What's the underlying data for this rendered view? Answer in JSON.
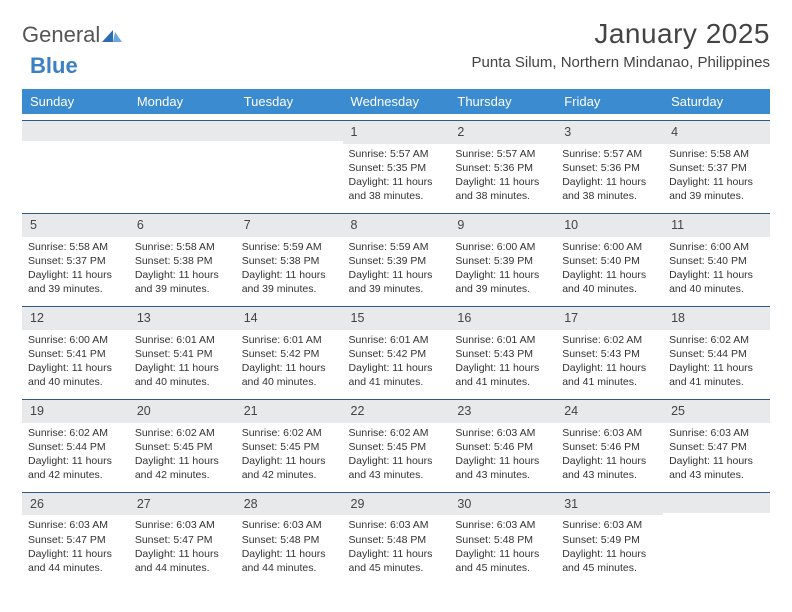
{
  "brand": {
    "general": "General",
    "blue": "Blue"
  },
  "header": {
    "title": "January 2025",
    "location": "Punta Silum, Northern Mindanao, Philippines"
  },
  "colors": {
    "header_bg": "#3b8bd1",
    "header_text": "#ffffff",
    "daynum_bg": "#e7e9eb",
    "daynum_border": "#2f5a87",
    "brand_blue": "#3b7fc4",
    "body_text": "#333333",
    "background": "#ffffff"
  },
  "calendar": {
    "day_names": [
      "Sunday",
      "Monday",
      "Tuesday",
      "Wednesday",
      "Thursday",
      "Friday",
      "Saturday"
    ],
    "weeks": [
      [
        null,
        null,
        null,
        {
          "n": "1",
          "sunrise": "Sunrise: 5:57 AM",
          "sunset": "Sunset: 5:35 PM",
          "daylight": "Daylight: 11 hours and 38 minutes."
        },
        {
          "n": "2",
          "sunrise": "Sunrise: 5:57 AM",
          "sunset": "Sunset: 5:36 PM",
          "daylight": "Daylight: 11 hours and 38 minutes."
        },
        {
          "n": "3",
          "sunrise": "Sunrise: 5:57 AM",
          "sunset": "Sunset: 5:36 PM",
          "daylight": "Daylight: 11 hours and 38 minutes."
        },
        {
          "n": "4",
          "sunrise": "Sunrise: 5:58 AM",
          "sunset": "Sunset: 5:37 PM",
          "daylight": "Daylight: 11 hours and 39 minutes."
        }
      ],
      [
        {
          "n": "5",
          "sunrise": "Sunrise: 5:58 AM",
          "sunset": "Sunset: 5:37 PM",
          "daylight": "Daylight: 11 hours and 39 minutes."
        },
        {
          "n": "6",
          "sunrise": "Sunrise: 5:58 AM",
          "sunset": "Sunset: 5:38 PM",
          "daylight": "Daylight: 11 hours and 39 minutes."
        },
        {
          "n": "7",
          "sunrise": "Sunrise: 5:59 AM",
          "sunset": "Sunset: 5:38 PM",
          "daylight": "Daylight: 11 hours and 39 minutes."
        },
        {
          "n": "8",
          "sunrise": "Sunrise: 5:59 AM",
          "sunset": "Sunset: 5:39 PM",
          "daylight": "Daylight: 11 hours and 39 minutes."
        },
        {
          "n": "9",
          "sunrise": "Sunrise: 6:00 AM",
          "sunset": "Sunset: 5:39 PM",
          "daylight": "Daylight: 11 hours and 39 minutes."
        },
        {
          "n": "10",
          "sunrise": "Sunrise: 6:00 AM",
          "sunset": "Sunset: 5:40 PM",
          "daylight": "Daylight: 11 hours and 40 minutes."
        },
        {
          "n": "11",
          "sunrise": "Sunrise: 6:00 AM",
          "sunset": "Sunset: 5:40 PM",
          "daylight": "Daylight: 11 hours and 40 minutes."
        }
      ],
      [
        {
          "n": "12",
          "sunrise": "Sunrise: 6:00 AM",
          "sunset": "Sunset: 5:41 PM",
          "daylight": "Daylight: 11 hours and 40 minutes."
        },
        {
          "n": "13",
          "sunrise": "Sunrise: 6:01 AM",
          "sunset": "Sunset: 5:41 PM",
          "daylight": "Daylight: 11 hours and 40 minutes."
        },
        {
          "n": "14",
          "sunrise": "Sunrise: 6:01 AM",
          "sunset": "Sunset: 5:42 PM",
          "daylight": "Daylight: 11 hours and 40 minutes."
        },
        {
          "n": "15",
          "sunrise": "Sunrise: 6:01 AM",
          "sunset": "Sunset: 5:42 PM",
          "daylight": "Daylight: 11 hours and 41 minutes."
        },
        {
          "n": "16",
          "sunrise": "Sunrise: 6:01 AM",
          "sunset": "Sunset: 5:43 PM",
          "daylight": "Daylight: 11 hours and 41 minutes."
        },
        {
          "n": "17",
          "sunrise": "Sunrise: 6:02 AM",
          "sunset": "Sunset: 5:43 PM",
          "daylight": "Daylight: 11 hours and 41 minutes."
        },
        {
          "n": "18",
          "sunrise": "Sunrise: 6:02 AM",
          "sunset": "Sunset: 5:44 PM",
          "daylight": "Daylight: 11 hours and 41 minutes."
        }
      ],
      [
        {
          "n": "19",
          "sunrise": "Sunrise: 6:02 AM",
          "sunset": "Sunset: 5:44 PM",
          "daylight": "Daylight: 11 hours and 42 minutes."
        },
        {
          "n": "20",
          "sunrise": "Sunrise: 6:02 AM",
          "sunset": "Sunset: 5:45 PM",
          "daylight": "Daylight: 11 hours and 42 minutes."
        },
        {
          "n": "21",
          "sunrise": "Sunrise: 6:02 AM",
          "sunset": "Sunset: 5:45 PM",
          "daylight": "Daylight: 11 hours and 42 minutes."
        },
        {
          "n": "22",
          "sunrise": "Sunrise: 6:02 AM",
          "sunset": "Sunset: 5:45 PM",
          "daylight": "Daylight: 11 hours and 43 minutes."
        },
        {
          "n": "23",
          "sunrise": "Sunrise: 6:03 AM",
          "sunset": "Sunset: 5:46 PM",
          "daylight": "Daylight: 11 hours and 43 minutes."
        },
        {
          "n": "24",
          "sunrise": "Sunrise: 6:03 AM",
          "sunset": "Sunset: 5:46 PM",
          "daylight": "Daylight: 11 hours and 43 minutes."
        },
        {
          "n": "25",
          "sunrise": "Sunrise: 6:03 AM",
          "sunset": "Sunset: 5:47 PM",
          "daylight": "Daylight: 11 hours and 43 minutes."
        }
      ],
      [
        {
          "n": "26",
          "sunrise": "Sunrise: 6:03 AM",
          "sunset": "Sunset: 5:47 PM",
          "daylight": "Daylight: 11 hours and 44 minutes."
        },
        {
          "n": "27",
          "sunrise": "Sunrise: 6:03 AM",
          "sunset": "Sunset: 5:47 PM",
          "daylight": "Daylight: 11 hours and 44 minutes."
        },
        {
          "n": "28",
          "sunrise": "Sunrise: 6:03 AM",
          "sunset": "Sunset: 5:48 PM",
          "daylight": "Daylight: 11 hours and 44 minutes."
        },
        {
          "n": "29",
          "sunrise": "Sunrise: 6:03 AM",
          "sunset": "Sunset: 5:48 PM",
          "daylight": "Daylight: 11 hours and 45 minutes."
        },
        {
          "n": "30",
          "sunrise": "Sunrise: 6:03 AM",
          "sunset": "Sunset: 5:48 PM",
          "daylight": "Daylight: 11 hours and 45 minutes."
        },
        {
          "n": "31",
          "sunrise": "Sunrise: 6:03 AM",
          "sunset": "Sunset: 5:49 PM",
          "daylight": "Daylight: 11 hours and 45 minutes."
        },
        null
      ]
    ]
  }
}
